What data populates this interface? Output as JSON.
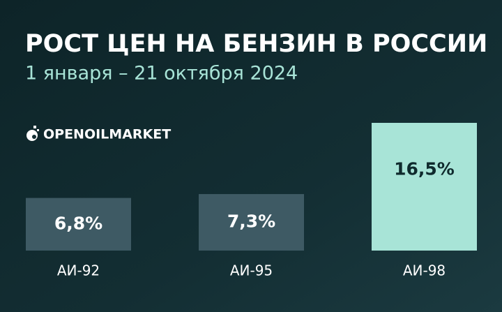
{
  "chart_data": {
    "type": "bar",
    "title": "РОСТ ЦЕН НА БЕНЗИН В РОССИИ",
    "subtitle": "1 января – 21 октября 2024",
    "brand": "OPENOILMARKET",
    "categories": [
      "АИ-92",
      "АИ-95",
      "АИ-98"
    ],
    "values": [
      6.8,
      7.3,
      16.5
    ],
    "value_labels": [
      "6,8%",
      "7,3%",
      "16,5%"
    ],
    "colors": [
      "#3e5a64",
      "#3e5a64",
      "#a8e4d7"
    ]
  }
}
